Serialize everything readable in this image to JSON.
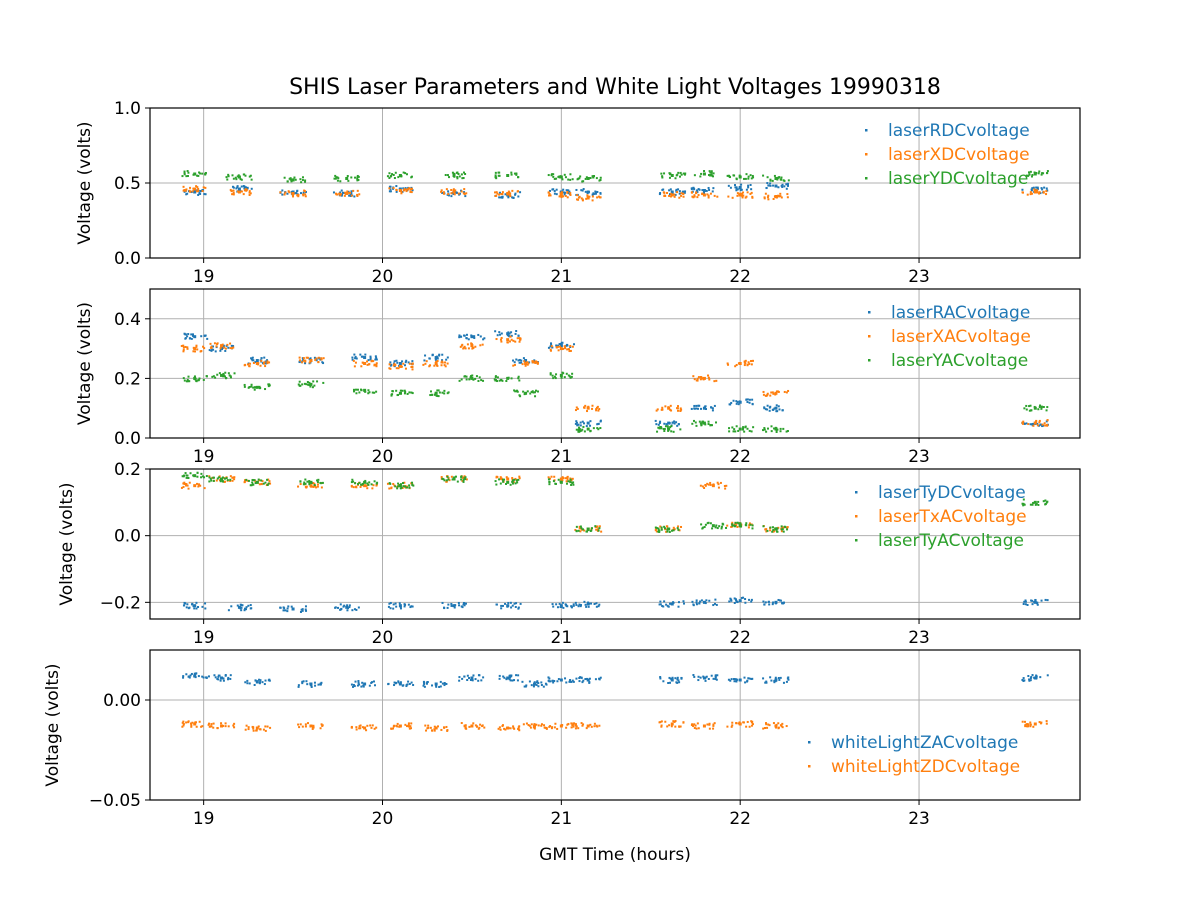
{
  "chart_data": {
    "type": "scatter",
    "title": "SHIS Laser Parameters and White Light Voltages 19990318",
    "xlabel": "GMT Time (hours)",
    "xlim": [
      18.7,
      23.9
    ],
    "xticks": [
      19,
      20,
      21,
      22,
      23
    ],
    "colors": [
      "#1f77b4",
      "#ff7f0e",
      "#2ca02c"
    ],
    "panels": [
      {
        "ylabel": "Voltage (volts)",
        "ylim": [
          0.0,
          1.0
        ],
        "yticks": [
          0.0,
          0.5,
          1.0
        ],
        "ytick_labels": [
          "0.0",
          "0.5",
          "1.0"
        ],
        "legend_position": "upper-right",
        "series": [
          {
            "name": "laserRDCvoltage",
            "x": [
              18.95,
              19.2,
              19.5,
              19.8,
              20.1,
              20.4,
              20.7,
              21.0,
              21.15,
              21.62,
              21.8,
              22.0,
              22.2,
              23.65
            ],
            "y": [
              0.44,
              0.46,
              0.44,
              0.43,
              0.46,
              0.43,
              0.42,
              0.44,
              0.44,
              0.44,
              0.45,
              0.47,
              0.48,
              0.45
            ]
          },
          {
            "name": "laserXDCvoltage",
            "x": [
              18.95,
              19.2,
              19.5,
              19.8,
              20.1,
              20.4,
              20.7,
              21.0,
              21.15,
              21.62,
              21.8,
              22.0,
              22.2,
              23.65
            ],
            "y": [
              0.46,
              0.44,
              0.43,
              0.43,
              0.45,
              0.44,
              0.43,
              0.42,
              0.4,
              0.42,
              0.42,
              0.42,
              0.41,
              0.44
            ]
          },
          {
            "name": "laserYDCvoltage",
            "x": [
              18.95,
              19.2,
              19.5,
              19.8,
              20.1,
              20.4,
              20.7,
              21.0,
              21.15,
              21.62,
              21.8,
              22.0,
              22.2,
              23.65
            ],
            "y": [
              0.56,
              0.54,
              0.52,
              0.53,
              0.55,
              0.55,
              0.55,
              0.54,
              0.53,
              0.55,
              0.56,
              0.54,
              0.53,
              0.56
            ]
          }
        ]
      },
      {
        "ylabel": "Voltage (volts)",
        "ylim": [
          0.0,
          0.5
        ],
        "yticks": [
          0.0,
          0.2,
          0.4
        ],
        "ytick_labels": [
          "0.0",
          "0.2",
          "0.4"
        ],
        "legend_position": "upper-right",
        "series": [
          {
            "name": "laserRACvoltage",
            "x": [
              18.95,
              19.1,
              19.3,
              19.6,
              19.9,
              20.1,
              20.3,
              20.5,
              20.7,
              20.8,
              21.0,
              21.15,
              21.6,
              21.8,
              22.0,
              22.2,
              23.65
            ],
            "y": [
              0.34,
              0.3,
              0.26,
              0.26,
              0.27,
              0.25,
              0.27,
              0.34,
              0.35,
              0.26,
              0.31,
              0.05,
              0.05,
              0.1,
              0.12,
              0.1,
              0.05
            ]
          },
          {
            "name": "laserXACvoltage",
            "x": [
              18.95,
              19.1,
              19.3,
              19.6,
              19.9,
              20.1,
              20.3,
              20.5,
              20.7,
              20.8,
              21.0,
              21.15,
              21.6,
              21.8,
              22.0,
              22.2,
              23.65
            ],
            "y": [
              0.3,
              0.31,
              0.25,
              0.26,
              0.25,
              0.24,
              0.25,
              0.31,
              0.33,
              0.25,
              0.3,
              0.1,
              0.1,
              0.2,
              0.25,
              0.15,
              0.05
            ]
          },
          {
            "name": "laserYACvoltage",
            "x": [
              18.95,
              19.1,
              19.3,
              19.6,
              19.9,
              20.1,
              20.3,
              20.5,
              20.7,
              20.8,
              21.0,
              21.15,
              21.6,
              21.8,
              22.0,
              22.2,
              23.65
            ],
            "y": [
              0.2,
              0.21,
              0.17,
              0.18,
              0.16,
              0.15,
              0.15,
              0.2,
              0.2,
              0.15,
              0.21,
              0.03,
              0.03,
              0.05,
              0.03,
              0.03,
              0.1
            ]
          }
        ]
      },
      {
        "ylabel": "Voltage (volts)",
        "ylim": [
          -0.25,
          0.2
        ],
        "yticks": [
          -0.2,
          0.0,
          0.2
        ],
        "ytick_labels": [
          "−0.2",
          "0.0",
          "0.2"
        ],
        "legend_position": "upper-right",
        "series": [
          {
            "name": "laserTyDCvoltage",
            "x": [
              18.95,
              19.2,
              19.5,
              19.8,
              20.1,
              20.4,
              20.7,
              21.0,
              21.15,
              21.62,
              21.8,
              22.0,
              22.2,
              23.65
            ],
            "y": [
              -0.21,
              -0.215,
              -0.22,
              -0.215,
              -0.21,
              -0.21,
              -0.21,
              -0.21,
              -0.205,
              -0.205,
              -0.2,
              -0.195,
              -0.2,
              -0.2
            ]
          },
          {
            "name": "laserTxACvoltage",
            "x": [
              18.95,
              19.1,
              19.3,
              19.6,
              19.9,
              20.1,
              20.4,
              20.7,
              21.0,
              21.15,
              21.6,
              21.85,
              22.0,
              22.2
            ],
            "y": [
              0.15,
              0.17,
              0.16,
              0.15,
              0.15,
              0.15,
              0.17,
              0.17,
              0.17,
              0.02,
              0.02,
              0.15,
              0.03,
              0.02
            ]
          },
          {
            "name": "laserTyACvoltage",
            "x": [
              18.95,
              19.1,
              19.3,
              19.6,
              19.9,
              20.1,
              20.4,
              20.7,
              21.0,
              21.15,
              21.6,
              21.85,
              22.0,
              22.2,
              23.65
            ],
            "y": [
              0.18,
              0.17,
              0.16,
              0.16,
              0.16,
              0.15,
              0.17,
              0.16,
              0.16,
              0.02,
              0.02,
              0.03,
              0.03,
              0.02,
              0.1
            ]
          }
        ]
      },
      {
        "ylabel": "Voltage (volts)",
        "ylim": [
          -0.05,
          0.025
        ],
        "yticks": [
          -0.05,
          0.0
        ],
        "ytick_labels": [
          "−0.05",
          "0.00"
        ],
        "legend_position": "lower-right",
        "series": [
          {
            "name": "whiteLightZACvoltage",
            "x": [
              18.95,
              19.1,
              19.3,
              19.6,
              19.9,
              20.1,
              20.3,
              20.5,
              20.7,
              20.85,
              21.0,
              21.15,
              21.62,
              21.8,
              22.0,
              22.2,
              23.65
            ],
            "y": [
              0.012,
              0.011,
              0.009,
              0.008,
              0.008,
              0.008,
              0.008,
              0.011,
              0.011,
              0.008,
              0.01,
              0.01,
              0.01,
              0.011,
              0.01,
              0.01,
              0.011
            ]
          },
          {
            "name": "whiteLightZDCvoltage",
            "x": [
              18.95,
              19.1,
              19.3,
              19.6,
              19.9,
              20.1,
              20.3,
              20.5,
              20.7,
              20.85,
              21.0,
              21.15,
              21.62,
              21.8,
              22.0,
              22.2,
              23.65
            ],
            "y": [
              -0.012,
              -0.013,
              -0.014,
              -0.013,
              -0.014,
              -0.013,
              -0.014,
              -0.013,
              -0.014,
              -0.013,
              -0.013,
              -0.013,
              -0.012,
              -0.013,
              -0.012,
              -0.013,
              -0.012
            ]
          }
        ]
      }
    ]
  }
}
